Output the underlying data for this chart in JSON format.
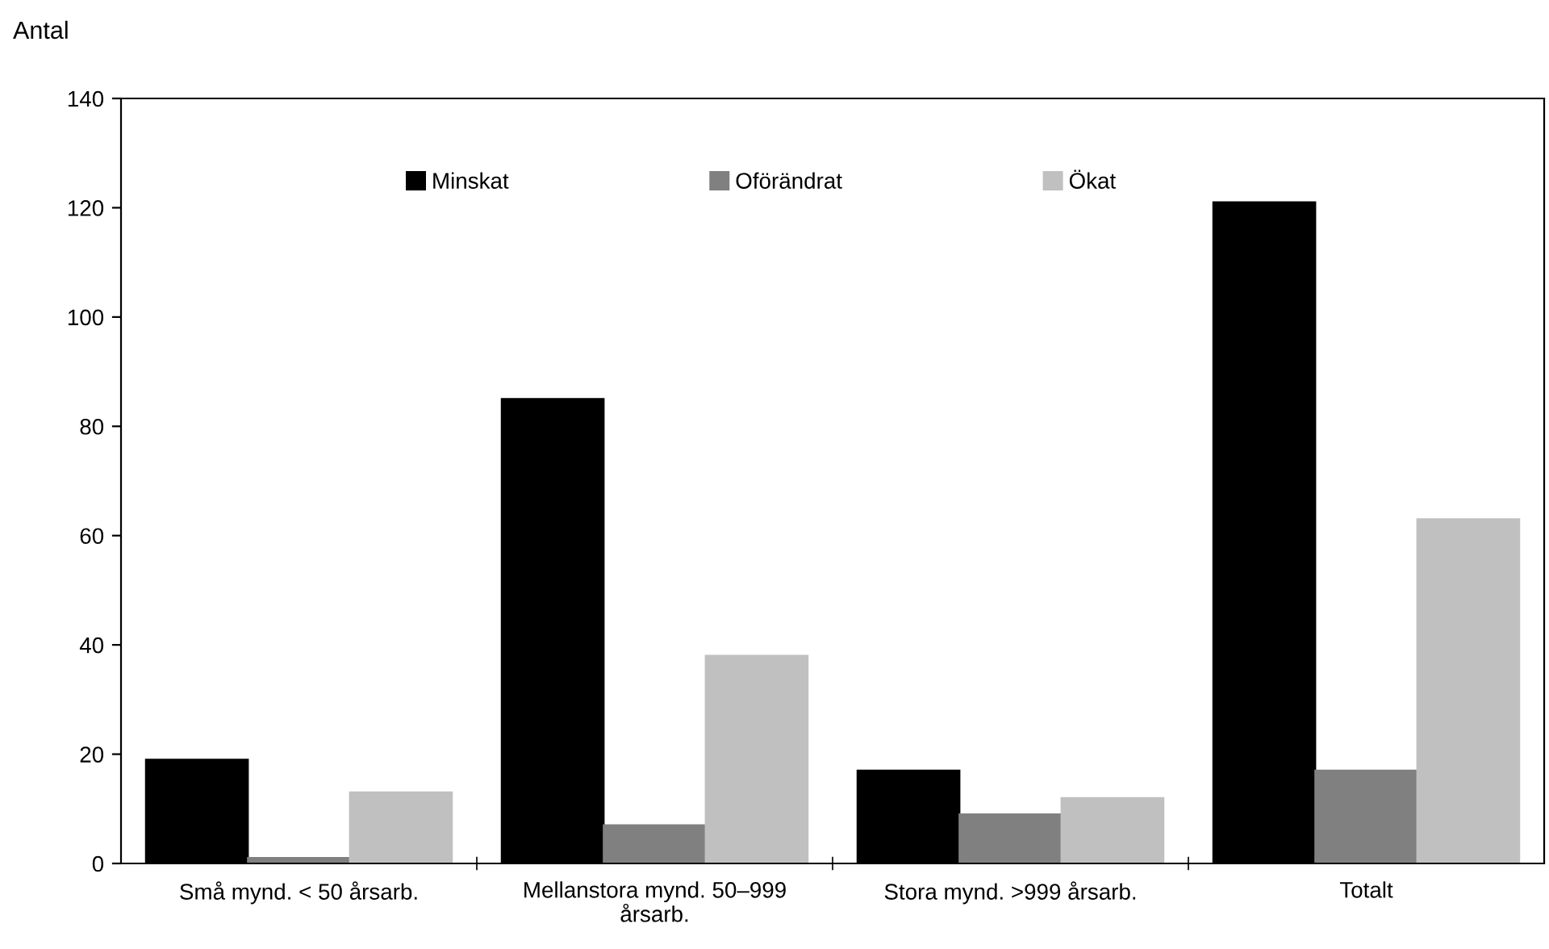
{
  "chart_data": {
    "type": "bar",
    "ylabel": "Antal",
    "categories": [
      "Små mynd. < 50 årsarb.",
      "Mellanstora mynd. 50–999 årsarb.",
      "Stora mynd. >999 årsarb.",
      "Totalt"
    ],
    "series": [
      {
        "name": "Minskat",
        "color": "#000000",
        "values": [
          19,
          85,
          17,
          121
        ]
      },
      {
        "name": "Oförändrat",
        "color": "#808080",
        "values": [
          1,
          7,
          9,
          17
        ]
      },
      {
        "name": "Ökat",
        "color": "#c0c0c0",
        "values": [
          13,
          38,
          12,
          63
        ]
      }
    ],
    "ylim": [
      0,
      140
    ],
    "yticks": [
      0,
      20,
      40,
      60,
      80,
      100,
      120,
      140
    ],
    "grid": false,
    "legend": "top"
  }
}
